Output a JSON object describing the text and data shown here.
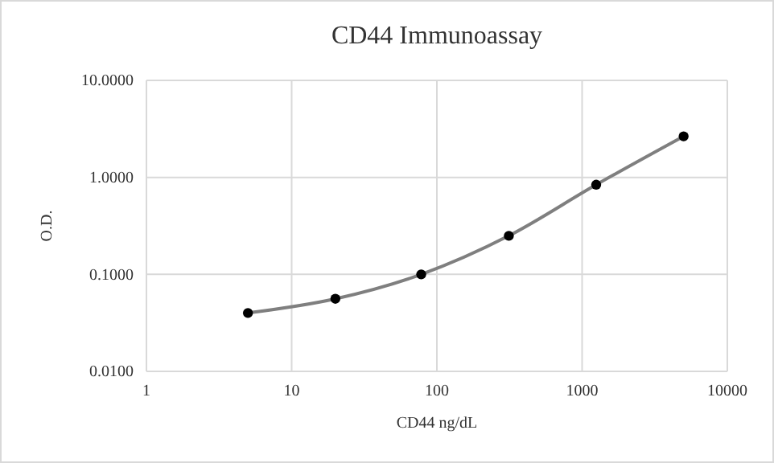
{
  "chart_data": {
    "type": "line",
    "title": "CD44 Immunoassay",
    "xlabel": "CD44 ng/dL",
    "ylabel": "O.D.",
    "x": [
      5,
      20,
      78,
      313,
      1250,
      5000
    ],
    "series": [
      {
        "color": "#7f7f7f",
        "values": [
          0.04,
          0.056,
          0.1,
          0.25,
          0.84,
          2.65
        ]
      }
    ],
    "log": "xy",
    "xlim": [
      1,
      10000
    ],
    "xticks": [
      1,
      10,
      100,
      1000,
      10000
    ],
    "ylim": [
      0.01,
      10
    ],
    "yticks": [
      {
        "value": 0.01,
        "label": "0.0100"
      },
      {
        "value": 0.1,
        "label": "0.1000"
      },
      {
        "value": 1,
        "label": "1.0000"
      },
      {
        "value": 10,
        "label": "10.0000"
      }
    ],
    "grid": true,
    "marker": "circle",
    "line_style": "solid"
  }
}
